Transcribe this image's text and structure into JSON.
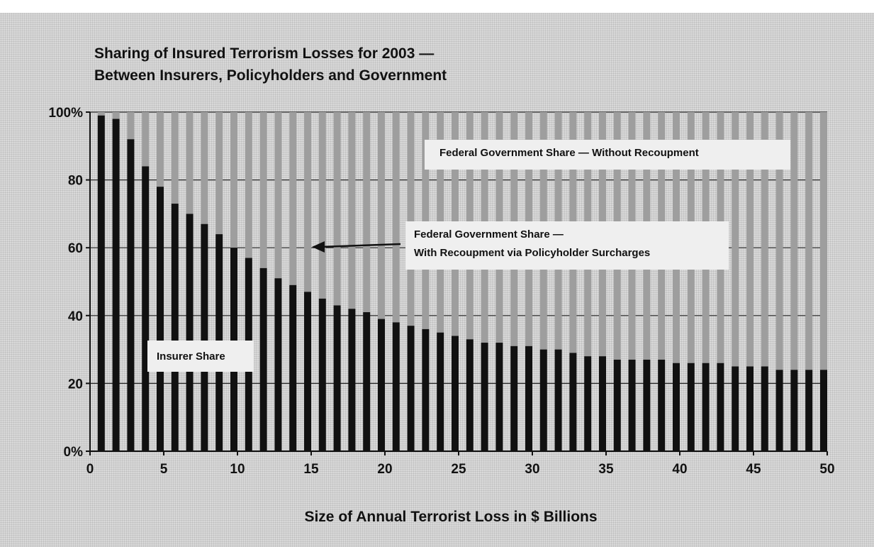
{
  "chart_data": {
    "type": "bar",
    "stacked": true,
    "title_lines": [
      "Sharing of Insured Terrorism Losses for 2003 —",
      "Between Insurers, Policyholders and Government"
    ],
    "xlabel": "Size of Annual Terrorist Loss in $ Billions",
    "ylabel": "",
    "xlim": [
      0,
      50
    ],
    "ylim": [
      0,
      100
    ],
    "x_ticks": [
      0,
      5,
      10,
      15,
      20,
      25,
      30,
      35,
      40,
      45,
      50
    ],
    "y_ticks": [
      {
        "value": 0,
        "label": "0%"
      },
      {
        "value": 20,
        "label": "20"
      },
      {
        "value": 40,
        "label": "40"
      },
      {
        "value": 60,
        "label": "60"
      },
      {
        "value": 80,
        "label": "80"
      },
      {
        "value": 100,
        "label": "100%"
      }
    ],
    "grid": true,
    "x": [
      1,
      2,
      3,
      4,
      5,
      6,
      7,
      8,
      9,
      10,
      11,
      12,
      13,
      14,
      15,
      16,
      17,
      18,
      19,
      20,
      21,
      22,
      23,
      24,
      25,
      26,
      27,
      28,
      29,
      30,
      31,
      32,
      33,
      34,
      35,
      36,
      37,
      38,
      39,
      40,
      41,
      42,
      43,
      44,
      45,
      46,
      47,
      48,
      49,
      50
    ],
    "insurer_share": [
      99,
      98,
      92,
      84,
      78,
      73,
      70,
      67,
      64,
      60,
      57,
      54,
      51,
      49,
      47,
      45,
      43,
      42,
      41,
      39,
      38,
      37,
      36,
      35,
      34,
      33,
      32,
      32,
      31,
      31,
      30,
      30,
      29,
      28,
      28,
      27,
      27,
      27,
      27,
      26,
      26,
      26,
      26,
      25,
      25,
      25,
      24,
      24,
      24,
      24
    ],
    "recoupment_top": [
      100,
      100,
      100,
      100,
      100,
      100,
      100,
      100,
      100,
      100,
      100,
      100,
      100,
      100,
      100,
      100,
      100,
      100,
      100,
      100,
      100,
      100,
      100,
      100,
      100,
      100,
      100,
      100,
      100,
      100,
      100,
      100,
      100,
      100,
      100,
      100,
      100,
      100,
      100,
      100,
      100,
      100,
      100,
      100,
      100,
      100,
      100,
      100,
      100,
      100
    ],
    "annotations": {
      "insurer": "Insurer Share",
      "with_recoupment_1": "Federal Government Share —",
      "with_recoupment_2": "With Recoupment via  Policyholder Surcharges",
      "without_recoupment": "Federal Government Share — Without Recoupment"
    },
    "colors": {
      "insurer": "#111111",
      "recoupment": "#9e9e9e",
      "background": "#d9d9d9",
      "annotation_box": "#efefef"
    }
  }
}
